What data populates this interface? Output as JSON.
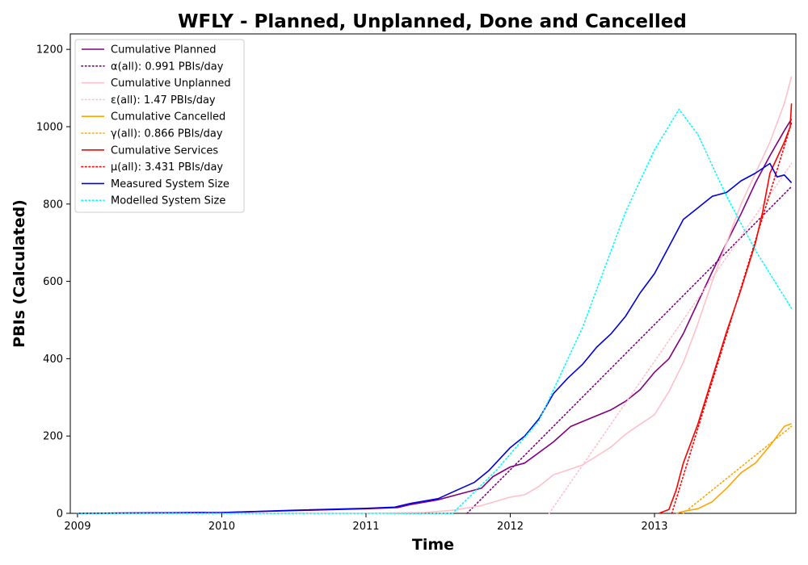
{
  "chart_data": {
    "type": "line",
    "title": "WFLY - Planned, Unplanned, Done  and Cancelled",
    "xlabel": "Time",
    "ylabel": "PBIs (Calculated)",
    "xlim": [
      2008.95,
      2013.98
    ],
    "ylim": [
      0,
      1240
    ],
    "x_ticks": [
      2009,
      2010,
      2011,
      2012,
      2013
    ],
    "x_tick_labels": [
      "2009",
      "2010",
      "2011",
      "2012",
      "2013"
    ],
    "y_ticks": [
      0,
      200,
      400,
      600,
      800,
      1000,
      1200
    ],
    "y_tick_labels": [
      "0",
      "200",
      "400",
      "600",
      "800",
      "1000",
      "1200"
    ],
    "legend_position": "top-left",
    "grid": false,
    "series": [
      {
        "name": "Cumulative Planned",
        "color": "#800080",
        "style": "solid",
        "points": [
          [
            2009.0,
            0
          ],
          [
            2010.0,
            2
          ],
          [
            2010.5,
            7
          ],
          [
            2011.0,
            12
          ],
          [
            2011.22,
            15
          ],
          [
            2011.3,
            22
          ],
          [
            2011.5,
            35
          ],
          [
            2011.65,
            50
          ],
          [
            2011.8,
            65
          ],
          [
            2011.88,
            95
          ],
          [
            2012.0,
            120
          ],
          [
            2012.1,
            130
          ],
          [
            2012.3,
            185
          ],
          [
            2012.42,
            225
          ],
          [
            2012.55,
            245
          ],
          [
            2012.7,
            268
          ],
          [
            2012.8,
            290
          ],
          [
            2012.9,
            320
          ],
          [
            2013.0,
            365
          ],
          [
            2013.1,
            400
          ],
          [
            2013.2,
            465
          ],
          [
            2013.3,
            545
          ],
          [
            2013.4,
            625
          ],
          [
            2013.5,
            700
          ],
          [
            2013.6,
            775
          ],
          [
            2013.7,
            855
          ],
          [
            2013.8,
            925
          ],
          [
            2013.9,
            990
          ],
          [
            2013.95,
            1020
          ]
        ]
      },
      {
        "name": "α(all): 0.991 PBIs/day",
        "color": "#800080",
        "style": "dotted",
        "points": [
          [
            2011.7,
            0
          ],
          [
            2013.95,
            845
          ]
        ]
      },
      {
        "name": "Cumulative Unplanned",
        "color": "#ffc0cb",
        "style": "solid",
        "points": [
          [
            2009.0,
            0
          ],
          [
            2011.0,
            0
          ],
          [
            2011.4,
            2
          ],
          [
            2011.6,
            8
          ],
          [
            2011.8,
            20
          ],
          [
            2012.0,
            42
          ],
          [
            2012.1,
            48
          ],
          [
            2012.2,
            70
          ],
          [
            2012.3,
            100
          ],
          [
            2012.4,
            112
          ],
          [
            2012.5,
            125
          ],
          [
            2012.6,
            148
          ],
          [
            2012.7,
            172
          ],
          [
            2012.8,
            205
          ],
          [
            2012.9,
            230
          ],
          [
            2013.0,
            255
          ],
          [
            2013.1,
            315
          ],
          [
            2013.2,
            390
          ],
          [
            2013.3,
            490
          ],
          [
            2013.4,
            600
          ],
          [
            2013.5,
            700
          ],
          [
            2013.6,
            800
          ],
          [
            2013.7,
            880
          ],
          [
            2013.8,
            960
          ],
          [
            2013.9,
            1060
          ],
          [
            2013.95,
            1130
          ]
        ]
      },
      {
        "name": "ε(all): 1.47 PBIs/day",
        "color": "#ffc0cb",
        "style": "dotted",
        "points": [
          [
            2012.27,
            0
          ],
          [
            2013.95,
            905
          ]
        ]
      },
      {
        "name": "Cumulative Cancelled",
        "color": "#ffa500",
        "style": "solid",
        "points": [
          [
            2013.15,
            0
          ],
          [
            2013.2,
            5
          ],
          [
            2013.3,
            12
          ],
          [
            2013.4,
            30
          ],
          [
            2013.5,
            65
          ],
          [
            2013.6,
            105
          ],
          [
            2013.7,
            130
          ],
          [
            2013.8,
            175
          ],
          [
            2013.9,
            225
          ],
          [
            2013.95,
            232
          ]
        ]
      },
      {
        "name": "γ(all): 0.866 PBIs/day",
        "color": "#ffa500",
        "style": "dotted",
        "points": [
          [
            2013.2,
            0
          ],
          [
            2013.95,
            225
          ]
        ]
      },
      {
        "name": "Cumulative Services",
        "color": "#ff0000",
        "style": "solid",
        "points": [
          [
            2013.03,
            0
          ],
          [
            2013.1,
            10
          ],
          [
            2013.15,
            60
          ],
          [
            2013.2,
            130
          ],
          [
            2013.3,
            230
          ],
          [
            2013.4,
            350
          ],
          [
            2013.5,
            470
          ],
          [
            2013.6,
            580
          ],
          [
            2013.7,
            700
          ],
          [
            2013.75,
            780
          ],
          [
            2013.8,
            880
          ],
          [
            2013.9,
            960
          ],
          [
            2013.94,
            1000
          ],
          [
            2013.95,
            1060
          ]
        ]
      },
      {
        "name": "μ(all): 3.431 PBIs/day",
        "color": "#ff0000",
        "style": "dotted",
        "points": [
          [
            2013.12,
            0
          ],
          [
            2013.95,
            1010
          ]
        ]
      },
      {
        "name": "Measured System Size",
        "color": "#0000e0",
        "style": "solid",
        "points": [
          [
            2009.0,
            0
          ],
          [
            2010.0,
            2
          ],
          [
            2010.5,
            8
          ],
          [
            2011.0,
            13
          ],
          [
            2011.2,
            16
          ],
          [
            2011.3,
            25
          ],
          [
            2011.5,
            38
          ],
          [
            2011.6,
            55
          ],
          [
            2011.75,
            80
          ],
          [
            2011.85,
            110
          ],
          [
            2012.0,
            170
          ],
          [
            2012.1,
            200
          ],
          [
            2012.2,
            245
          ],
          [
            2012.3,
            310
          ],
          [
            2012.4,
            350
          ],
          [
            2012.5,
            385
          ],
          [
            2012.6,
            430
          ],
          [
            2012.7,
            465
          ],
          [
            2012.8,
            510
          ],
          [
            2012.9,
            570
          ],
          [
            2013.0,
            620
          ],
          [
            2013.1,
            690
          ],
          [
            2013.2,
            760
          ],
          [
            2013.3,
            790
          ],
          [
            2013.4,
            820
          ],
          [
            2013.5,
            830
          ],
          [
            2013.6,
            860
          ],
          [
            2013.7,
            880
          ],
          [
            2013.8,
            905
          ],
          [
            2013.85,
            870
          ],
          [
            2013.9,
            875
          ],
          [
            2013.95,
            855
          ]
        ]
      },
      {
        "name": "Modelled System Size",
        "color": "#00ffff",
        "style": "dotted",
        "points": [
          [
            2009.0,
            0
          ],
          [
            2011.6,
            0
          ],
          [
            2011.9,
            110
          ],
          [
            2012.2,
            240
          ],
          [
            2012.5,
            480
          ],
          [
            2012.8,
            780
          ],
          [
            2013.0,
            940
          ],
          [
            2013.17,
            1045
          ],
          [
            2013.3,
            980
          ],
          [
            2013.5,
            820
          ],
          [
            2013.7,
            680
          ],
          [
            2013.95,
            530
          ]
        ]
      }
    ]
  }
}
